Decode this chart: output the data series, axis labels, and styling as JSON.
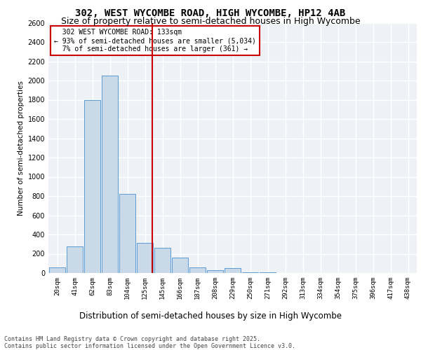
{
  "title1": "302, WEST WYCOMBE ROAD, HIGH WYCOMBE, HP12 4AB",
  "title2": "Size of property relative to semi-detached houses in High Wycombe",
  "xlabel": "Distribution of semi-detached houses by size in High Wycombe",
  "ylabel": "Number of semi-detached properties",
  "footnote": "Contains HM Land Registry data © Crown copyright and database right 2025.\nContains public sector information licensed under the Open Government Licence v3.0.",
  "bar_labels": [
    "20sqm",
    "41sqm",
    "62sqm",
    "83sqm",
    "104sqm",
    "125sqm",
    "145sqm",
    "166sqm",
    "187sqm",
    "208sqm",
    "229sqm",
    "250sqm",
    "271sqm",
    "292sqm",
    "313sqm",
    "334sqm",
    "354sqm",
    "375sqm",
    "396sqm",
    "417sqm",
    "438sqm"
  ],
  "bar_values": [
    55,
    280,
    1800,
    2050,
    820,
    310,
    260,
    160,
    55,
    30,
    50,
    10,
    5,
    3,
    2,
    2,
    1,
    1,
    1,
    1,
    1
  ],
  "bar_color": "#c9d9e8",
  "bar_edge_color": "#5b9bd5",
  "property_label": "302 WEST WYCOMBE ROAD: 133sqm",
  "pct_smaller": 93,
  "n_smaller": 5034,
  "pct_larger": 7,
  "n_larger": 361,
  "vline_color": "#cc0000",
  "annotation_box_color": "#cc0000",
  "ylim": [
    0,
    2600
  ],
  "yticks": [
    0,
    200,
    400,
    600,
    800,
    1000,
    1200,
    1400,
    1600,
    1800,
    2000,
    2200,
    2400,
    2600
  ],
  "bg_color": "#eef2f7",
  "grid_color": "#ffffff",
  "title1_fontsize": 10,
  "title2_fontsize": 9,
  "xlabel_fontsize": 8.5,
  "ylabel_fontsize": 7.5,
  "footnote_fontsize": 6.0
}
